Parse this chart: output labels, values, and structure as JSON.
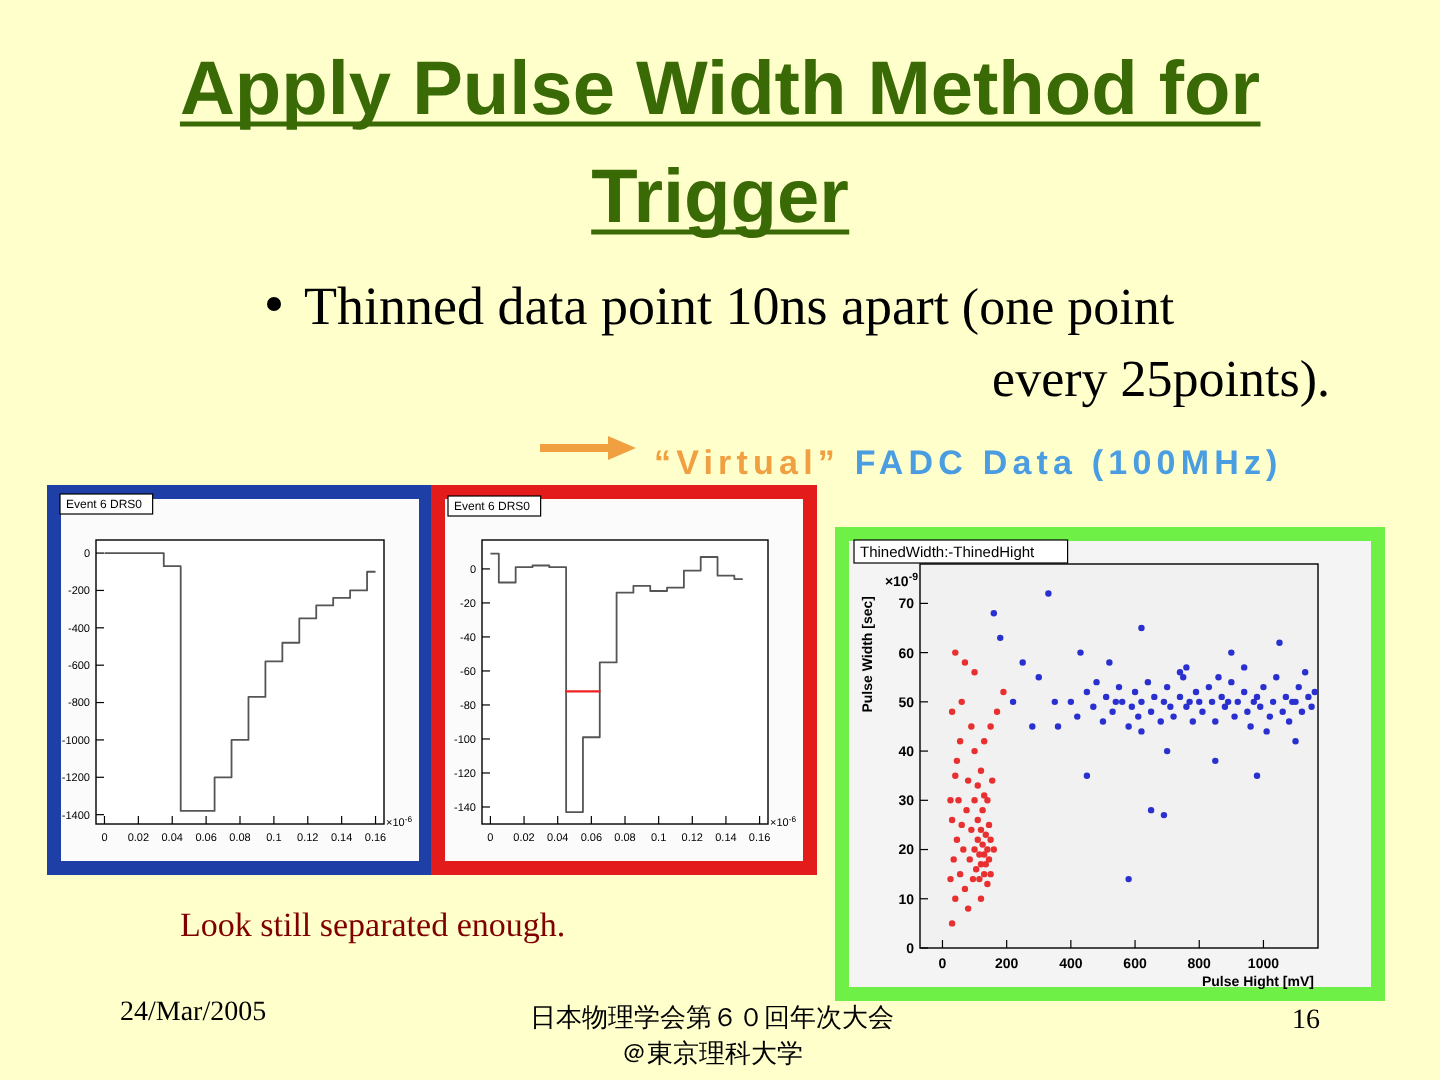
{
  "chart_data": [
    {
      "type": "other",
      "title": "Apply Pulse Width Method for Trigger",
      "annotations": [
        "Thinned data point 10ns apart",
        "(one point every 25points).",
        "“Virtual” FADC Data (100MHz)",
        "Look still separated enough.",
        "24/Mar/2005",
        "日本物理学会第６０回年次大会",
        "＠東京理科大学",
        "16"
      ]
    },
    {
      "type": "step",
      "title": "Event 6 DRS0",
      "x": [
        0,
        0.01,
        0.02,
        0.03,
        0.04,
        0.05,
        0.06,
        0.07,
        0.08,
        0.09,
        0.1,
        0.11,
        0.12,
        0.13,
        0.14,
        0.15,
        0.16
      ],
      "values": [
        0,
        0,
        0,
        0,
        -70,
        -1380,
        -1380,
        -1200,
        -1000,
        -770,
        -580,
        -480,
        -350,
        -280,
        -240,
        -200,
        -100
      ],
      "color": "#555555",
      "xlim": [
        -0.005,
        0.165
      ],
      "xticks": [
        0,
        0.02,
        0.04,
        0.06,
        0.08,
        0.1,
        0.12,
        0.14,
        0.16
      ],
      "ylim": [
        -1450,
        70
      ],
      "yticks": [
        0,
        -200,
        -400,
        -600,
        -800,
        -1000,
        -1200,
        -1400
      ],
      "annotations": [
        "×10$^{-6}$"
      ]
    },
    {
      "type": "step",
      "title": "Event 6 DRS0",
      "series": [
        {
          "type": "step",
          "x": [
            0,
            0.01,
            0.02,
            0.03,
            0.04,
            0.05,
            0.06,
            0.07,
            0.08,
            0.09,
            0.1,
            0.11,
            0.12,
            0.13,
            0.14,
            0.15
          ],
          "values": [
            9,
            -8,
            1,
            2,
            1,
            -143,
            -99,
            -55,
            -14,
            -10,
            -13,
            -11,
            -1,
            7,
            -4,
            -6
          ],
          "color": "#555555"
        },
        {
          "type": "line",
          "x": [
            0.045,
            0.065
          ],
          "values": [
            -72,
            -72
          ],
          "color": "#ee2222"
        }
      ],
      "xlim": [
        -0.005,
        0.165
      ],
      "xticks": [
        0,
        0.02,
        0.04,
        0.06,
        0.08,
        0.1,
        0.12,
        0.14,
        0.16
      ],
      "ylim": [
        -150,
        17
      ],
      "yticks": [
        0,
        -20,
        -40,
        -60,
        -80,
        -100,
        -120,
        -140
      ],
      "annotations": [
        "×10$^{-6}$"
      ]
    },
    {
      "type": "scatter",
      "title": "ThinedWidth:-ThinedHight",
      "xlabel": "Pulse Hight [mV]",
      "ylabel": "Pulse Width [sec]",
      "marker": "circle",
      "series": [
        {
          "color": "#e83030",
          "x": [
            30,
            40,
            25,
            35,
            45,
            30,
            50,
            40,
            55,
            60,
            70,
            65,
            75,
            80,
            85,
            90,
            95,
            100,
            100,
            105,
            110,
            110,
            115,
            115,
            120,
            120,
            125,
            125,
            130,
            130,
            135,
            135,
            140,
            140,
            145,
            145,
            150,
            150,
            110,
            120,
            130,
            100,
            90,
            60,
            70,
            40,
            55,
            150,
            170,
            190,
            80,
            120,
            140,
            160,
            45,
            25,
            30,
            100,
            130,
            155
          ],
          "values": [
            5,
            10,
            14,
            18,
            22,
            26,
            30,
            35,
            15,
            25,
            12,
            20,
            28,
            34,
            18,
            24,
            14,
            20,
            30,
            16,
            22,
            26,
            14,
            19,
            24,
            17,
            21,
            28,
            15,
            19,
            23,
            17,
            20,
            13,
            25,
            18,
            22,
            15,
            33,
            36,
            31,
            40,
            45,
            50,
            58,
            60,
            42,
            45,
            48,
            52,
            8,
            10,
            30,
            20,
            38,
            30,
            48,
            56,
            42,
            34
          ]
        },
        {
          "color": "#2a30d0",
          "x": [
            400,
            420,
            450,
            470,
            480,
            500,
            510,
            530,
            550,
            560,
            580,
            590,
            600,
            610,
            620,
            640,
            650,
            660,
            680,
            690,
            700,
            710,
            720,
            740,
            750,
            760,
            780,
            790,
            800,
            810,
            830,
            840,
            850,
            870,
            880,
            900,
            910,
            920,
            940,
            950,
            960,
            980,
            990,
            1000,
            1020,
            1030,
            1040,
            1060,
            1070,
            1080,
            1100,
            1110,
            1120,
            1140,
            1150,
            1160,
            300,
            330,
            250,
            350,
            280,
            430,
            620,
            900,
            1050,
            700,
            850,
            980,
            650,
            690,
            580,
            1100,
            450,
            520,
            760,
            940,
            360,
            220,
            180,
            160,
            620,
            740,
            860,
            1010,
            1130,
            970,
            770,
            890,
            1090,
            540
          ],
          "values": [
            50,
            47,
            52,
            49,
            54,
            46,
            51,
            48,
            53,
            50,
            45,
            49,
            52,
            47,
            50,
            54,
            48,
            51,
            46,
            50,
            53,
            49,
            47,
            51,
            55,
            49,
            46,
            52,
            50,
            48,
            53,
            50,
            46,
            51,
            49,
            54,
            47,
            50,
            52,
            48,
            45,
            51,
            49,
            53,
            47,
            50,
            55,
            48,
            51,
            46,
            50,
            53,
            48,
            51,
            49,
            52,
            55,
            72,
            58,
            50,
            45,
            60,
            65,
            60,
            62,
            40,
            38,
            35,
            28,
            27,
            14,
            42,
            35,
            58,
            57,
            57,
            45,
            50,
            63,
            68,
            44,
            56,
            55,
            44,
            56,
            50,
            50,
            50,
            50,
            50
          ]
        }
      ],
      "xlim": [
        -70,
        1170
      ],
      "xticks": [
        0,
        200,
        400,
        600,
        800,
        1000
      ],
      "ylim": [
        0,
        78
      ],
      "yticks": [
        0,
        10,
        20,
        30,
        40,
        50,
        60,
        70
      ],
      "annotations": [
        "×10$^{-9}$"
      ]
    }
  ]
}
